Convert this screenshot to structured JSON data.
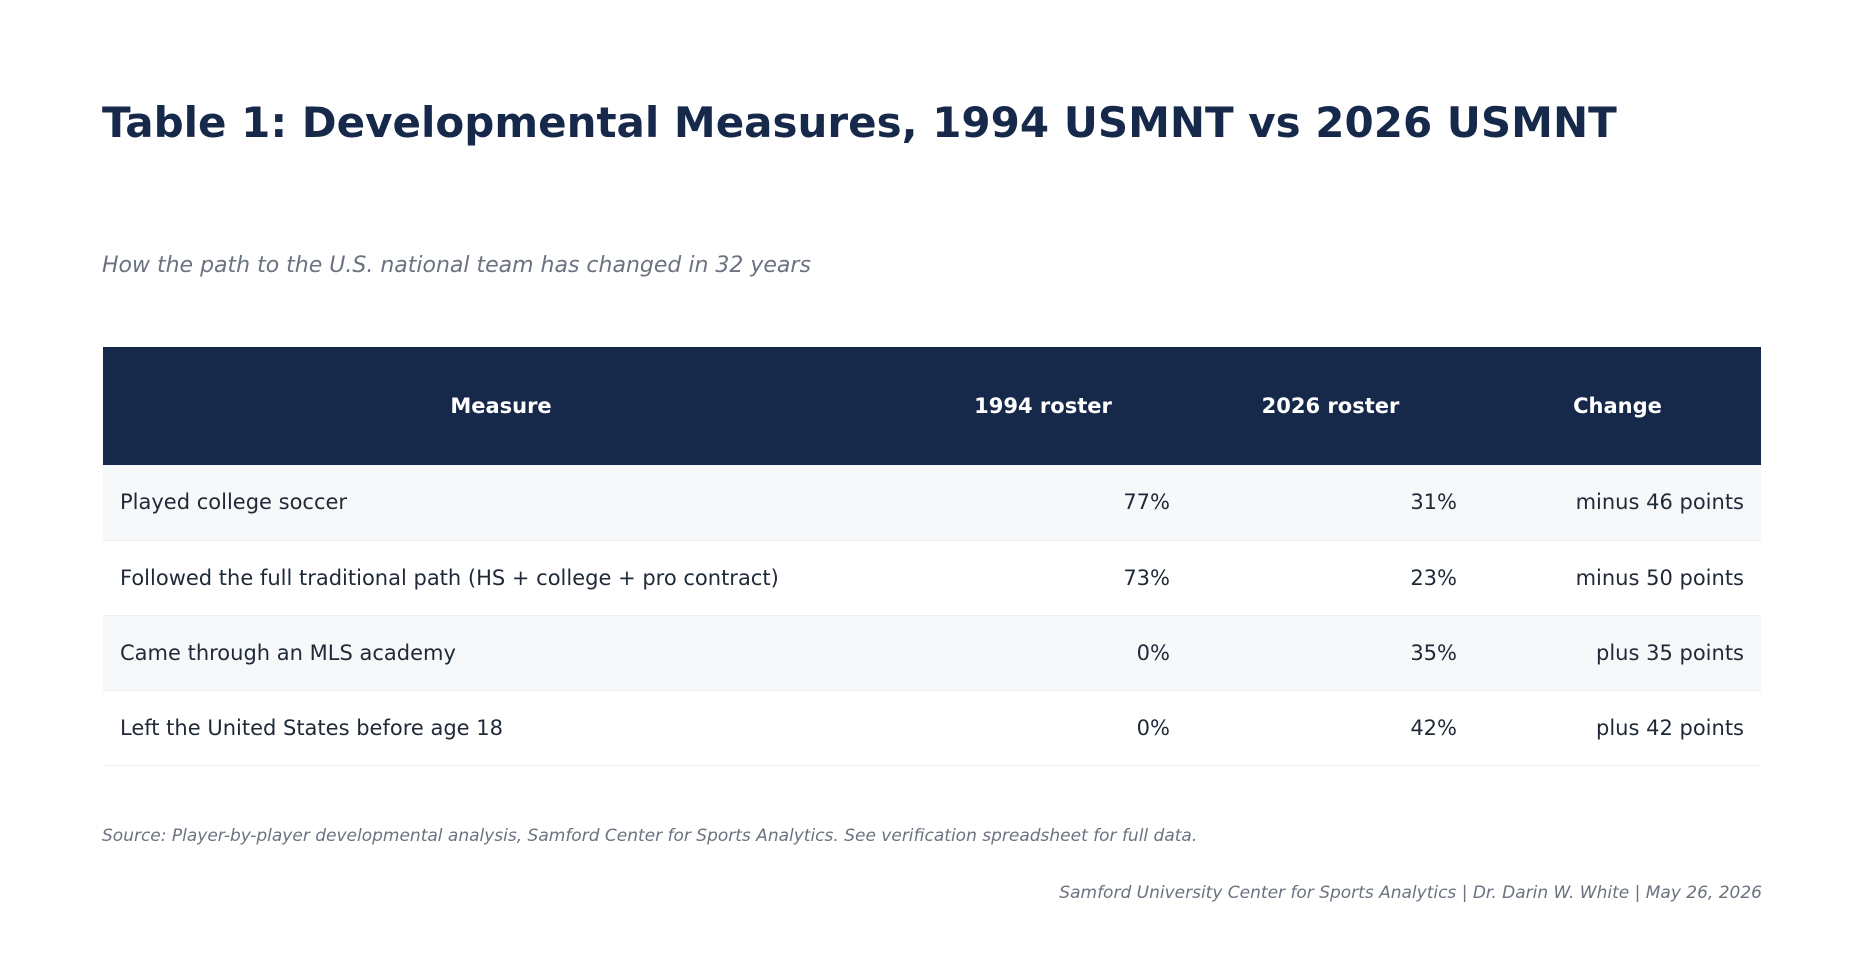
{
  "title": "Table 1: Developmental Measures, 1994 USMNT vs 2026 USMNT",
  "subtitle": "How the path to the U.S. national team has changed in 32 years",
  "table": {
    "headers": [
      "Measure",
      "1994 roster",
      "2026 roster",
      "Change"
    ],
    "rows": [
      [
        "Played college soccer",
        "77%",
        "31%",
        "minus 46 points"
      ],
      [
        "Followed the full traditional path (HS + college + pro contract)",
        "73%",
        "23%",
        "minus 50 points"
      ],
      [
        "Came through an MLS academy",
        "0%",
        "35%",
        "plus 35 points"
      ],
      [
        "Left the United States before age 18",
        "0%",
        "42%",
        "plus 42 points"
      ]
    ]
  },
  "source": "Source: Player-by-player developmental analysis, Samford Center for Sports Analytics. See verification spreadsheet for full data.",
  "footer": "Samford University Center for Sports Analytics | Dr. Darin W. White | May 26, 2026",
  "colors": {
    "header_bg": "#16294a",
    "title": "#16294a",
    "muted_text": "#6b7280",
    "row_alt": "#f7f8fa"
  }
}
